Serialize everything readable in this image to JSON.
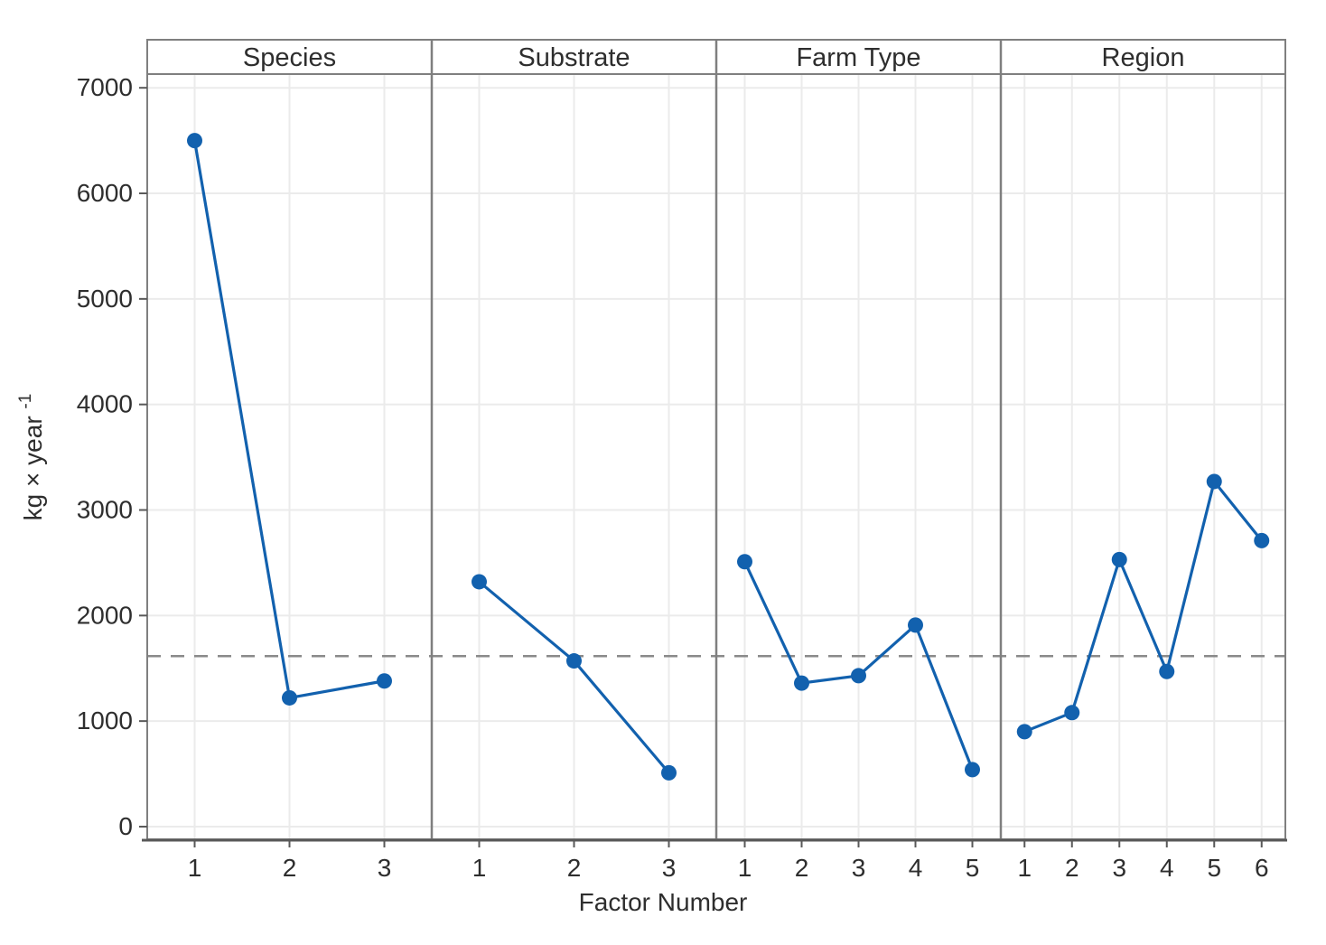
{
  "chart_data": {
    "type": "line",
    "chart_kind": "main-effects-plot",
    "title": "",
    "xlabel": "Factor Number",
    "ylabel": "kg × year ⁻¹",
    "ylabel_base": "kg × year",
    "ylabel_superscript": "-1",
    "yticks": [
      0,
      1000,
      2000,
      3000,
      4000,
      5000,
      6000,
      7000
    ],
    "ylim": [
      -120,
      7130
    ],
    "grid": true,
    "legend": false,
    "marker": "circle",
    "reference_line": {
      "value": 1615,
      "style": "dashed"
    },
    "panels": [
      {
        "label": "Species",
        "categories": [
          "1",
          "2",
          "3"
        ],
        "values": [
          6500,
          1220,
          1380
        ]
      },
      {
        "label": "Substrate",
        "categories": [
          "1",
          "2",
          "3"
        ],
        "values": [
          2320,
          1570,
          510
        ]
      },
      {
        "label": "Farm Type",
        "categories": [
          "1",
          "2",
          "3",
          "4",
          "5"
        ],
        "values": [
          2510,
          1360,
          1430,
          1910,
          540
        ]
      },
      {
        "label": "Region",
        "categories": [
          "1",
          "2",
          "3",
          "4",
          "5",
          "6"
        ],
        "values": [
          900,
          1080,
          2530,
          1470,
          3270,
          2710
        ]
      }
    ]
  },
  "colors": {
    "series_blue": "#1261ae",
    "reference_gray": "#8a8a8a",
    "panel_border": "#7f7f7f",
    "axis_line": "#595959",
    "gridline": "#ebebeb",
    "text": "#2e2e2e",
    "background": "#ffffff"
  }
}
